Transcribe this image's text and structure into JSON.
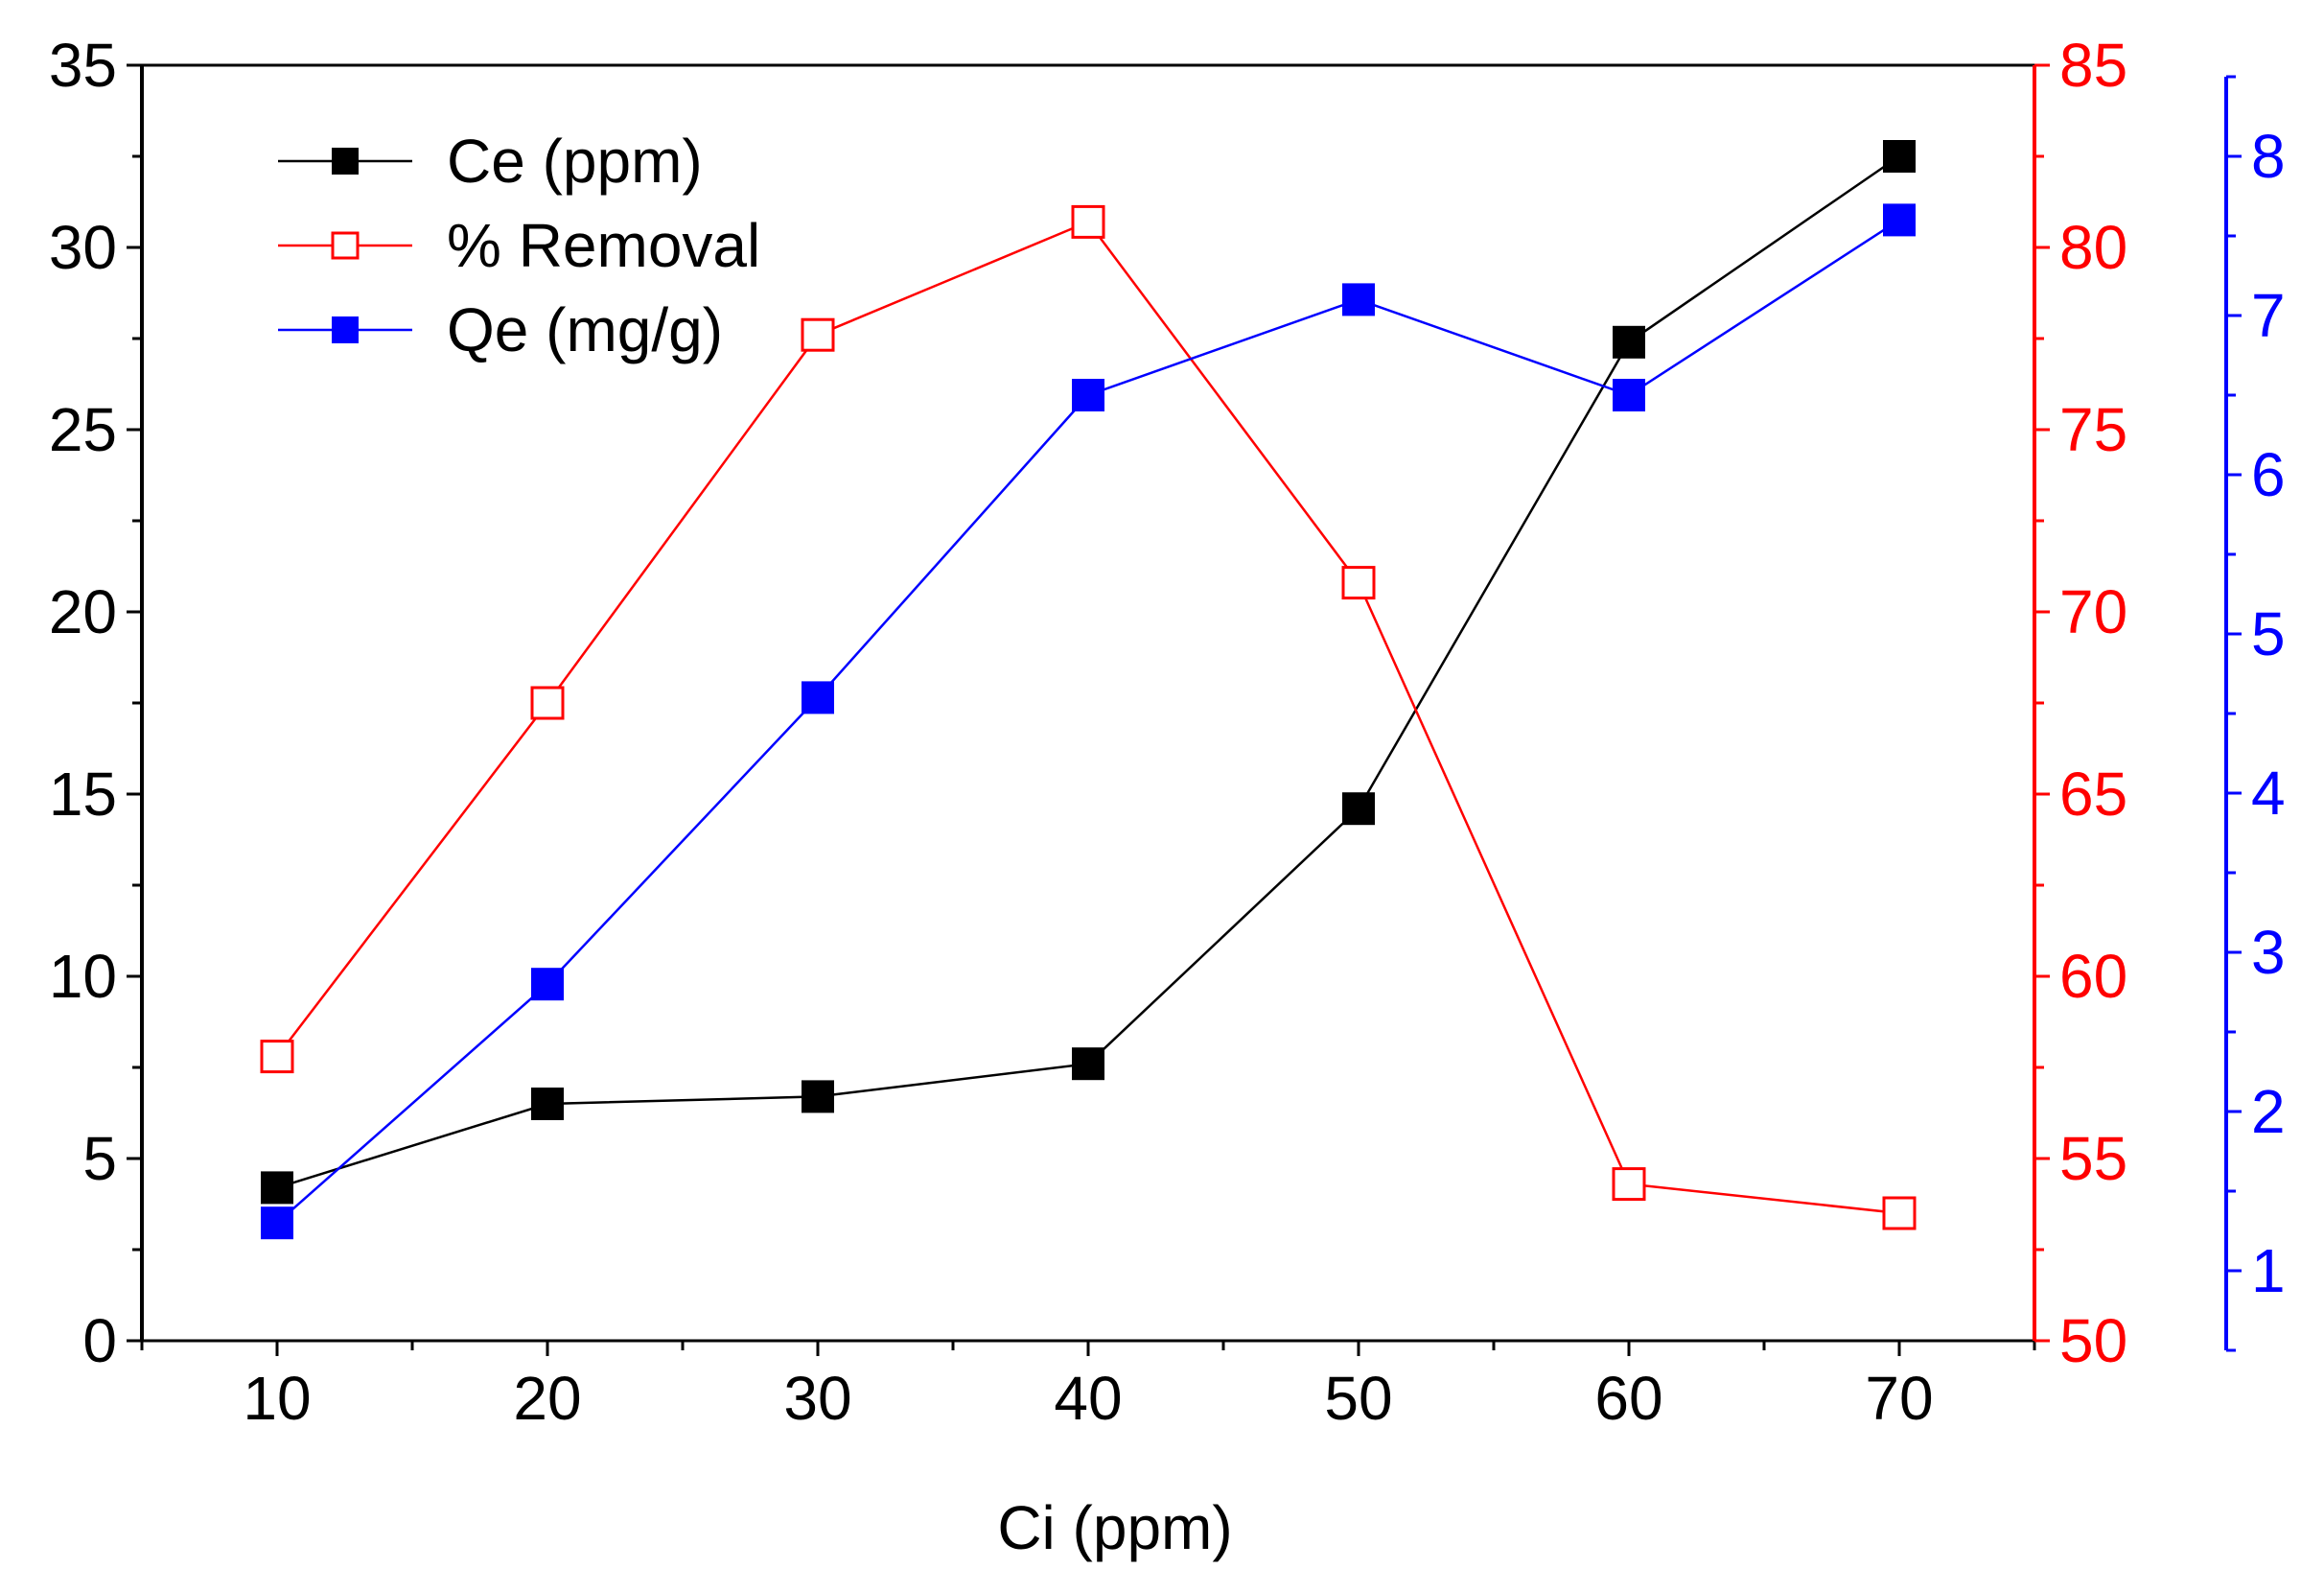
{
  "chart_data": {
    "type": "line",
    "title": "",
    "xlabel": "Ci (ppm)",
    "x": [
      10,
      20,
      30,
      40,
      50,
      60,
      70
    ],
    "xlim": [
      5,
      75
    ],
    "xticks": [
      10,
      20,
      30,
      40,
      50,
      60,
      70
    ],
    "xtick_labels": [
      "10",
      "20",
      "30",
      "40",
      "50",
      "60",
      "70"
    ],
    "grid": false,
    "legend_position": "top-left",
    "axes": {
      "left": {
        "color": "#000000",
        "ylim": [
          0,
          35
        ],
        "ticks": [
          0,
          5,
          10,
          15,
          20,
          25,
          30,
          35
        ],
        "tick_labels": [
          "0",
          "5",
          "10",
          "15",
          "20",
          "25",
          "30",
          "35"
        ]
      },
      "right1": {
        "color": "#ff0000",
        "ylim": [
          50,
          85
        ],
        "ticks": [
          50,
          55,
          60,
          65,
          70,
          75,
          80,
          85
        ],
        "tick_labels": [
          "50",
          "55",
          "60",
          "65",
          "70",
          "75",
          "80",
          "85"
        ]
      },
      "right2": {
        "color": "#0000ff",
        "ylim": [
          0.5,
          8.5
        ],
        "ticks": [
          1,
          2,
          3,
          4,
          5,
          6,
          7,
          8
        ],
        "tick_labels": [
          "1",
          "2",
          "3",
          "4",
          "5",
          "6",
          "7",
          "8"
        ]
      }
    },
    "series": [
      {
        "name": "Ce (ppm)",
        "axis": "left",
        "color": "#000000",
        "marker": "filled-square",
        "values": [
          4.2,
          6.5,
          6.7,
          7.6,
          14.6,
          27.4,
          32.5
        ]
      },
      {
        "name": "% Removal",
        "axis": "right1",
        "color": "#ff0000",
        "marker": "open-square",
        "values": [
          57.8,
          67.5,
          77.6,
          80.7,
          70.8,
          54.3,
          53.5
        ]
      },
      {
        "name": "Qe (mg/g)",
        "axis": "right2",
        "color": "#0000ff",
        "marker": "filled-square",
        "values": [
          1.3,
          2.8,
          4.6,
          6.5,
          7.1,
          6.5,
          7.6
        ]
      }
    ]
  }
}
